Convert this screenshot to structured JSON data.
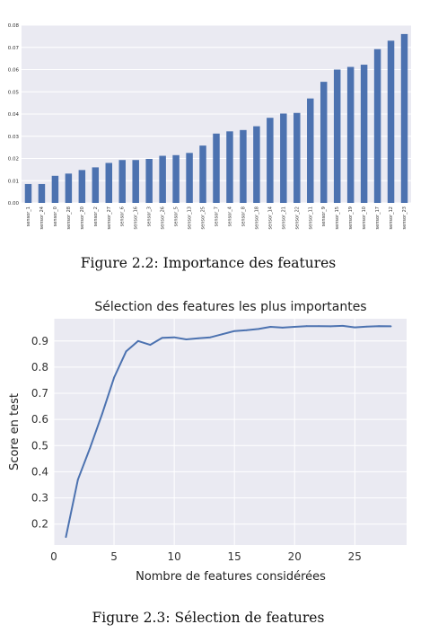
{
  "chart_data": [
    {
      "type": "bar",
      "title": "",
      "xlabel": "",
      "ylabel": "",
      "ylim": [
        0,
        0.08
      ],
      "yticks": [
        "0.00",
        "0.01",
        "0.02",
        "0.03",
        "0.04",
        "0.05",
        "0.06",
        "0.07",
        "0.08"
      ],
      "grid": true,
      "color": "#4c72b0",
      "background": "#eaeaf2",
      "categories": [
        "sensor_1",
        "sensor_24",
        "sensor_0",
        "sensor_28",
        "sensor_20",
        "sensor_2",
        "sensor_27",
        "sensor_6",
        "sensor_16",
        "sensor_3",
        "sensor_26",
        "sensor_5",
        "sensor_13",
        "sensor_25",
        "sensor_7",
        "sensor_4",
        "sensor_8",
        "sensor_18",
        "sensor_14",
        "sensor_21",
        "sensor_22",
        "sensor_11",
        "sensor_9",
        "sensor_15",
        "sensor_19",
        "sensor_10",
        "sensor_17",
        "sensor_12",
        "sensor_23"
      ],
      "values": [
        0.0085,
        0.0085,
        0.0122,
        0.0132,
        0.0148,
        0.016,
        0.018,
        0.0193,
        0.0193,
        0.0198,
        0.0212,
        0.0215,
        0.0225,
        0.0258,
        0.0312,
        0.0322,
        0.0328,
        0.0345,
        0.0383,
        0.0402,
        0.0405,
        0.047,
        0.0545,
        0.06,
        0.0612,
        0.0622,
        0.0692,
        0.073,
        0.076
      ],
      "caption": "Figure 2.2: Importance des features"
    },
    {
      "type": "line",
      "title": "Sélection des features les plus importantes",
      "xlabel": "Nombre de features considérées",
      "ylabel": "Score en test",
      "xlim": [
        0,
        29.3
      ],
      "ylim": [
        0.12,
        0.985
      ],
      "xticks": [
        0,
        5,
        10,
        15,
        20,
        25
      ],
      "yticks": [
        0.2,
        0.3,
        0.4,
        0.5,
        0.6,
        0.7,
        0.8,
        0.9
      ],
      "grid": true,
      "color": "#4c72b0",
      "background": "#eaeaf2",
      "x": [
        1,
        2,
        3,
        4,
        5,
        6,
        7,
        8,
        9,
        10,
        11,
        12,
        13,
        14,
        15,
        16,
        17,
        18,
        19,
        20,
        21,
        22,
        23,
        24,
        25,
        26,
        27,
        28
      ],
      "y": [
        0.15,
        0.37,
        0.49,
        0.62,
        0.76,
        0.86,
        0.9,
        0.885,
        0.912,
        0.914,
        0.906,
        0.91,
        0.914,
        0.926,
        0.938,
        0.941,
        0.946,
        0.954,
        0.951,
        0.954,
        0.957,
        0.957,
        0.956,
        0.958,
        0.952,
        0.955,
        0.957,
        0.956
      ],
      "caption": "Figure 2.3: Sélection de features"
    }
  ]
}
